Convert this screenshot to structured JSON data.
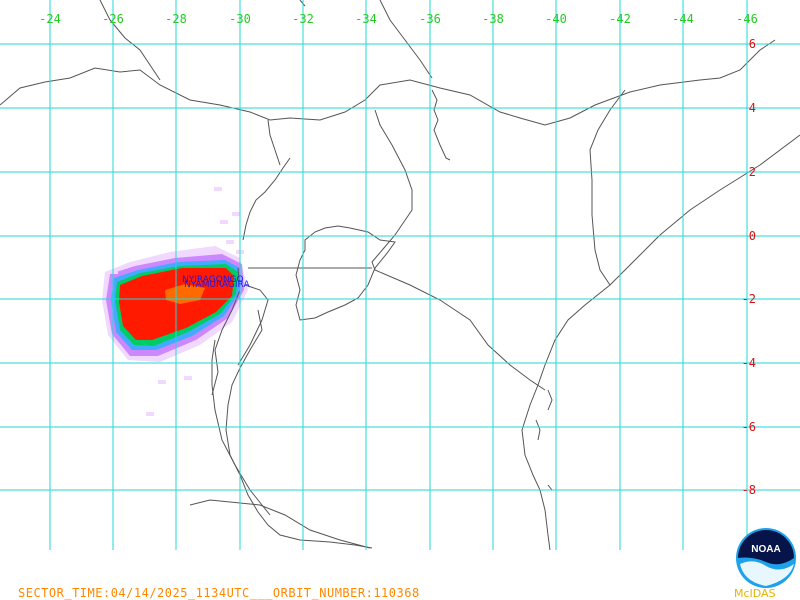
{
  "map": {
    "longitude_labels": [
      "-24",
      "-26",
      "-28",
      "-30",
      "-32",
      "-34",
      "-36",
      "-38",
      "-40",
      "-42",
      "-44",
      "-46"
    ],
    "latitude_labels": [
      "6",
      "4",
      "2",
      "0",
      "-2",
      "-4",
      "-6",
      "-8"
    ],
    "grid_color": "#22d8d8",
    "border_color": "#555555",
    "volcano_labels": [
      "NYIRAGONGO",
      "NYAMURAGIRA"
    ],
    "plume_colors": [
      "#ff1a00",
      "#ff6a00",
      "#00cc66",
      "#44aaff",
      "#cc88ff",
      "#f0d8ff"
    ]
  },
  "footer": {
    "sector_time": "SECTOR_TIME:04/14/2025_1134UTC___ORBIT_NUMBER:110368",
    "color": "#ff8800"
  },
  "logo": {
    "text": "NOAA",
    "credit": "McIDAS"
  }
}
